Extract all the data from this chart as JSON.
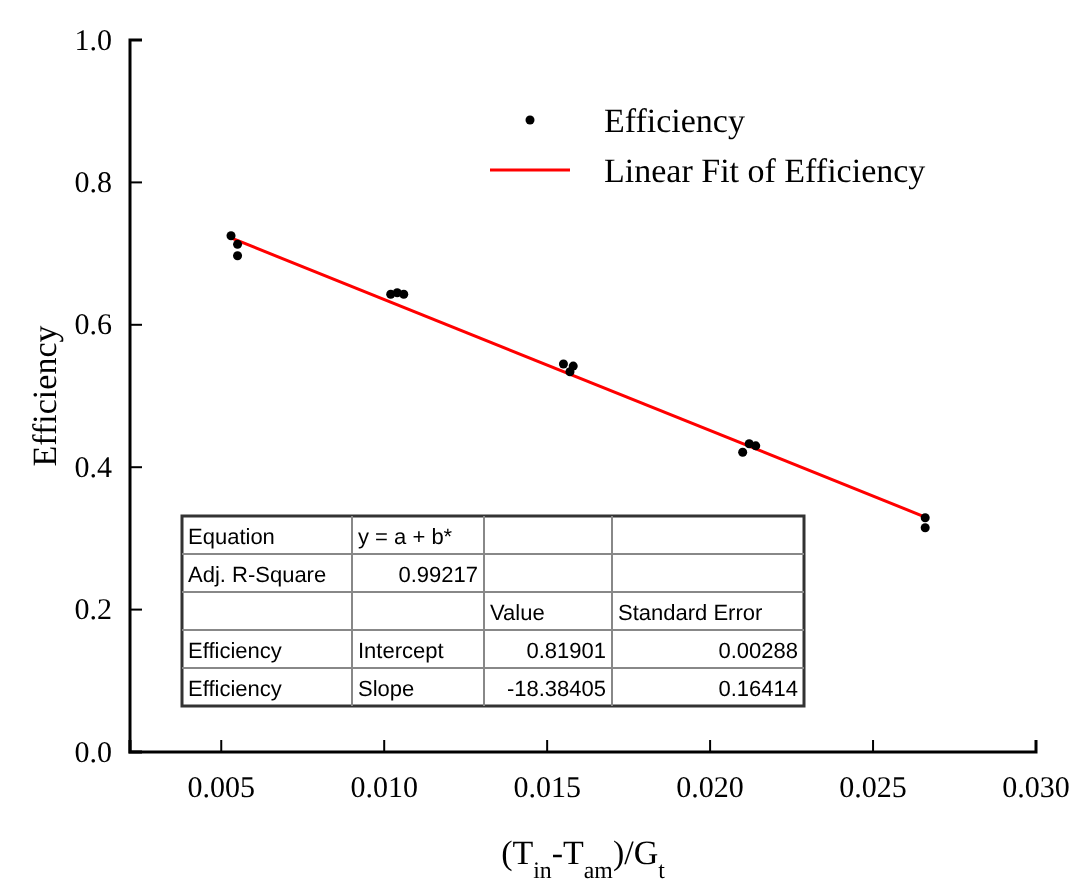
{
  "chart_data": {
    "type": "scatter",
    "xlabel": "(T$_{in}$-T$_{am}$)/G$_{t}$",
    "ylabel": "Efficiency",
    "xlim": [
      0.0022,
      0.03
    ],
    "ylim": [
      0,
      1
    ],
    "xticks": [
      {
        "value": 0.005,
        "label": "0.005"
      },
      {
        "value": 0.01,
        "label": "0.010"
      },
      {
        "value": 0.015,
        "label": "0.015"
      },
      {
        "value": 0.02,
        "label": "0.020"
      },
      {
        "value": 0.025,
        "label": "0.025"
      },
      {
        "value": 0.03,
        "label": "0.030"
      }
    ],
    "yticks": [
      {
        "value": 0,
        "label": "0.0"
      },
      {
        "value": 0.2,
        "label": "0.2"
      },
      {
        "value": 0.4,
        "label": "0.4"
      },
      {
        "value": 0.6,
        "label": "0.6"
      },
      {
        "value": 0.8,
        "label": "0.8"
      },
      {
        "value": 1,
        "label": "1.0"
      }
    ],
    "legend": "top right",
    "grid": false,
    "marker": "circle",
    "series": [
      {
        "name": "Efficiency",
        "color": "#000000",
        "x": [
          0.0053,
          0.0055,
          0.0055,
          0.0102,
          0.0104,
          0.0106,
          0.0155,
          0.0157,
          0.0158,
          0.021,
          0.0212,
          0.0214,
          0.0266,
          0.0266
        ],
        "values": [
          0.725,
          0.713,
          0.697,
          0.643,
          0.645,
          0.643,
          0.545,
          0.534,
          0.542,
          0.421,
          0.433,
          0.43,
          0.329,
          0.315
        ]
      },
      {
        "name": "Linear Fit of Efficiency",
        "type": "line",
        "color": "#ff0000",
        "line_style": "solid",
        "marker": "none",
        "x": [
          0.0053,
          0.0266
        ],
        "values": [
          0.722,
          0.33
        ]
      }
    ],
    "annotations": [
      "Equation",
      "y = a + b*",
      "Adj. R-Square",
      "0.99217",
      "Value",
      "Standard Error",
      "Efficiency",
      "Intercept",
      "0.81901",
      "0.00288",
      "Efficiency",
      "Slope",
      "-18.38405",
      "0.16414"
    ]
  }
}
